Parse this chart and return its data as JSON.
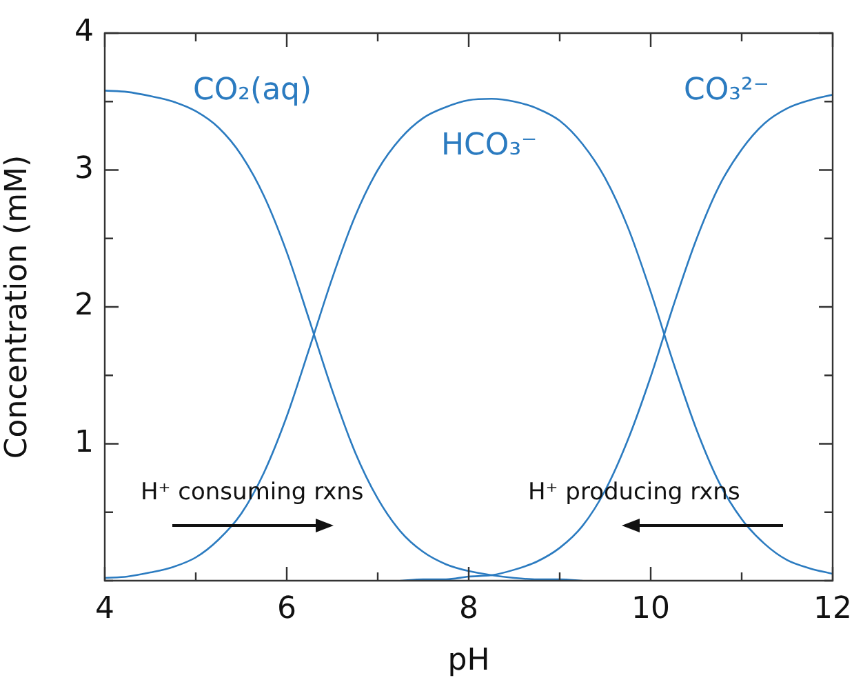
{
  "chart_data": {
    "type": "line",
    "xlabel": "pH",
    "ylabel": "Concentration (mM)",
    "x": [
      4,
      4.25,
      4.5,
      4.75,
      5,
      5.25,
      5.5,
      5.75,
      6,
      6.25,
      6.5,
      6.75,
      7,
      7.25,
      7.5,
      7.75,
      8,
      8.25,
      8.5,
      8.75,
      9,
      9.25,
      9.5,
      9.75,
      10,
      10.25,
      10.5,
      10.75,
      11,
      11.25,
      11.5,
      11.75,
      12
    ],
    "series": [
      {
        "name": "CO₂(aq)",
        "color": "#2b7bc0",
        "values": [
          3.58,
          3.57,
          3.54,
          3.5,
          3.43,
          3.31,
          3.11,
          2.81,
          2.4,
          1.9,
          1.39,
          0.94,
          0.6,
          0.36,
          0.21,
          0.12,
          0.07,
          0.04,
          0.02,
          0.01,
          0.01,
          0,
          null,
          null,
          null,
          null,
          null,
          null,
          null,
          null,
          null,
          null,
          null
        ]
      },
      {
        "name": "HCO₃⁻",
        "color": "#2b7bc0",
        "values": [
          0.02,
          0.03,
          0.06,
          0.1,
          0.17,
          0.3,
          0.49,
          0.79,
          1.2,
          1.7,
          2.21,
          2.66,
          3,
          3.23,
          3.38,
          3.46,
          3.51,
          3.52,
          3.5,
          3.45,
          3.36,
          3.19,
          2.94,
          2.58,
          2.11,
          1.59,
          1.11,
          0.72,
          0.45,
          0.27,
          0.15,
          0.09,
          0.05
        ]
      },
      {
        "name": "CO₃²⁻",
        "color": "#2b7bc0",
        "values": [
          null,
          null,
          null,
          null,
          null,
          null,
          null,
          null,
          null,
          null,
          null,
          null,
          null,
          0,
          0.01,
          0.01,
          0.03,
          0.04,
          0.08,
          0.14,
          0.24,
          0.4,
          0.66,
          1.03,
          1.49,
          2.01,
          2.49,
          2.88,
          3.15,
          3.34,
          3.45,
          3.51,
          3.55
        ]
      }
    ],
    "xlim": [
      4,
      12
    ],
    "xticks": [
      4,
      {
        "value": 5,
        "label": null
      },
      6,
      {
        "value": 7,
        "label": null
      },
      8,
      {
        "value": 9,
        "label": null
      },
      10,
      {
        "value": 11,
        "label": null
      },
      12
    ],
    "ylim": [
      0,
      4
    ],
    "yticks": [
      {
        "value": 0,
        "label": null
      },
      {
        "value": 0.5,
        "label": null
      },
      1,
      {
        "value": 1.5,
        "label": null
      },
      2,
      {
        "value": 2.5,
        "label": null
      },
      3,
      {
        "value": 3.5,
        "label": null
      },
      4
    ],
    "grid": false,
    "legend": false,
    "marker": "none",
    "line_style": "solid",
    "annotations": [
      "H⁺ consuming rxns",
      "H⁺ producing rxns"
    ]
  }
}
